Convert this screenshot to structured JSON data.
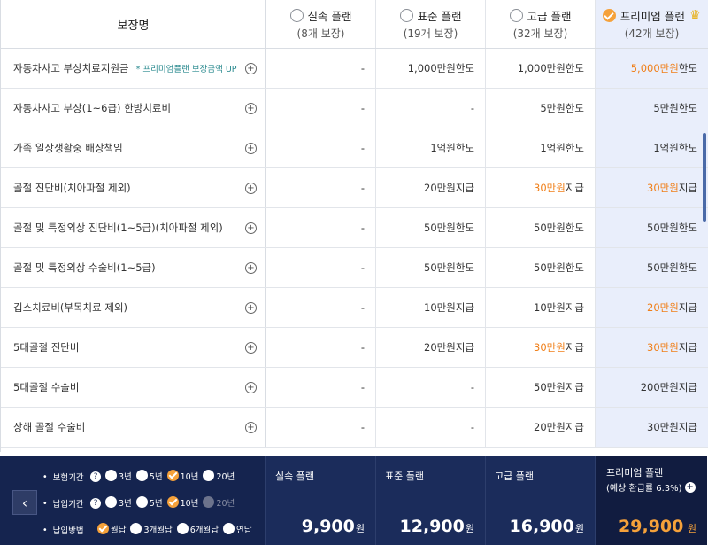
{
  "header": {
    "coverage_label": "보장명",
    "plans": [
      {
        "name": "실속 플랜",
        "count": "(8개 보장)",
        "selected": false
      },
      {
        "name": "표준 플랜",
        "count": "(19개 보장)",
        "selected": false
      },
      {
        "name": "고급 플랜",
        "count": "(32개 보장)",
        "selected": false
      },
      {
        "name": "프리미엄 플랜",
        "count": "(42개 보장)",
        "selected": true
      }
    ]
  },
  "rows": [
    {
      "name": "자동차사고 부상치료지원금",
      "note": "* 프리미엄플랜 보장금액 UP",
      "cells": [
        {
          "num": "-",
          "unit": ""
        },
        {
          "num": "1,000만원",
          "unit": " 한도"
        },
        {
          "num": "1,000만원",
          "unit": " 한도"
        },
        {
          "num": "5,000만원",
          "unit": " 한도",
          "hl": true
        }
      ]
    },
    {
      "name": "자동차사고 부상(1~6급) 한방치료비",
      "note": "",
      "cells": [
        {
          "num": "-",
          "unit": ""
        },
        {
          "num": "-",
          "unit": ""
        },
        {
          "num": "5만원",
          "unit": " 한도"
        },
        {
          "num": "5만원",
          "unit": " 한도"
        }
      ]
    },
    {
      "name": "가족 일상생활중 배상책임",
      "note": "",
      "cells": [
        {
          "num": "-",
          "unit": ""
        },
        {
          "num": "1억원",
          "unit": " 한도"
        },
        {
          "num": "1억원",
          "unit": " 한도"
        },
        {
          "num": "1억원",
          "unit": " 한도"
        }
      ]
    },
    {
      "name": "골절 진단비(치아파절 제외)",
      "note": "",
      "cells": [
        {
          "num": "-",
          "unit": ""
        },
        {
          "num": "20만원",
          "unit": " 지급"
        },
        {
          "num": "30만원",
          "unit": " 지급",
          "hl": true
        },
        {
          "num": "30만원",
          "unit": " 지급",
          "hl": true
        }
      ]
    },
    {
      "name": "골절 및 특정외상 진단비(1~5급)(치아파절 제외)",
      "note": "",
      "cells": [
        {
          "num": "-",
          "unit": ""
        },
        {
          "num": "50만원",
          "unit": " 한도"
        },
        {
          "num": "50만원",
          "unit": " 한도"
        },
        {
          "num": "50만원",
          "unit": " 한도"
        }
      ]
    },
    {
      "name": "골절 및 특정외상 수술비(1~5급)",
      "note": "",
      "cells": [
        {
          "num": "-",
          "unit": ""
        },
        {
          "num": "50만원",
          "unit": " 한도"
        },
        {
          "num": "50만원",
          "unit": " 한도"
        },
        {
          "num": "50만원",
          "unit": " 한도"
        }
      ]
    },
    {
      "name": "깁스치료비(부목치료 제외)",
      "note": "",
      "cells": [
        {
          "num": "-",
          "unit": ""
        },
        {
          "num": "10만원",
          "unit": " 지급"
        },
        {
          "num": "10만원",
          "unit": " 지급"
        },
        {
          "num": "20만원",
          "unit": " 지급",
          "hl": true
        }
      ]
    },
    {
      "name": "5대골절 진단비",
      "note": "",
      "cells": [
        {
          "num": "-",
          "unit": ""
        },
        {
          "num": "20만원",
          "unit": " 지급"
        },
        {
          "num": "30만원",
          "unit": " 지급",
          "hl": true
        },
        {
          "num": "30만원",
          "unit": " 지급",
          "hl": true
        }
      ]
    },
    {
      "name": "5대골절 수술비",
      "note": "",
      "cells": [
        {
          "num": "-",
          "unit": ""
        },
        {
          "num": "-",
          "unit": ""
        },
        {
          "num": "50만원",
          "unit": " 지급"
        },
        {
          "num": "200만원",
          "unit": " 지급"
        }
      ]
    },
    {
      "name": "상해 골절 수술비",
      "note": "",
      "cells": [
        {
          "num": "-",
          "unit": ""
        },
        {
          "num": "-",
          "unit": ""
        },
        {
          "num": "20만원",
          "unit": " 지급"
        },
        {
          "num": "30만원",
          "unit": " 지급"
        }
      ]
    }
  ],
  "options": {
    "prev_icon": "chevron-left-icon",
    "period": {
      "label": "보험기간",
      "help": "?",
      "choices": [
        {
          "label": "3년",
          "state": "off"
        },
        {
          "label": "5년",
          "state": "off"
        },
        {
          "label": "10년",
          "state": "on"
        },
        {
          "label": "20년",
          "state": "off"
        }
      ]
    },
    "payment_period": {
      "label": "납입기간",
      "help": "?",
      "choices": [
        {
          "label": "3년",
          "state": "off"
        },
        {
          "label": "5년",
          "state": "off"
        },
        {
          "label": "10년",
          "state": "on"
        },
        {
          "label": "20년",
          "state": "dis"
        }
      ]
    },
    "payment_method": {
      "label": "납입방법",
      "choices": [
        {
          "label": "월납",
          "state": "on"
        },
        {
          "label": "3개월납",
          "state": "off"
        },
        {
          "label": "6개월납",
          "state": "off"
        },
        {
          "label": "연납",
          "state": "off"
        }
      ]
    }
  },
  "prices": [
    {
      "label": "실속 플랜",
      "value": "9,900",
      "unit": "원"
    },
    {
      "label": "표준 플랜",
      "value": "12,900",
      "unit": "원"
    },
    {
      "label": "고급 플랜",
      "value": "16,900",
      "unit": "원"
    },
    {
      "label": "프리미엄 플랜",
      "sub": "(예상 환급률 6.3%)",
      "value": "29,900",
      "unit": " 원"
    }
  ],
  "colors": {
    "accent": "#f5a13a",
    "highlight": "#f07f19",
    "navy": "#15244f",
    "premium_col": "#e9eefb"
  }
}
